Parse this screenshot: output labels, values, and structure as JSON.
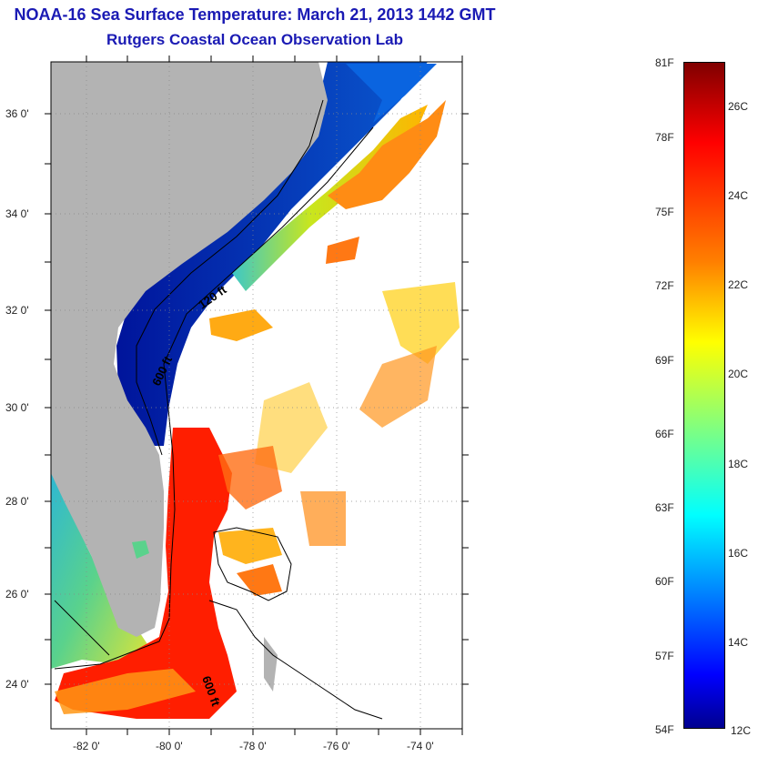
{
  "map": {
    "title": "NOAA-16 Sea Surface Temperature:  March 21, 2013 1442 GMT",
    "subtitle": "Rutgers Coastal Ocean Observation Lab",
    "lat_ticks": [
      "36 0'",
      "34 0'",
      "32 0'",
      "30 0'",
      "28 0'",
      "26 0'",
      "24 0'"
    ],
    "lon_ticks": [
      "-82 0'",
      "-80 0'",
      "-78 0'",
      "-76 0'",
      "-74 0'"
    ],
    "contour_labels": [
      "120 ft",
      "600 ft",
      "600 ft"
    ],
    "colors": {
      "land": "#b3b3b3",
      "cloud": "#ffffff",
      "title": "#1a1ab4"
    }
  },
  "colorbar": {
    "fahrenheit_labels": [
      "81F",
      "78F",
      "75F",
      "72F",
      "69F",
      "66F",
      "63F",
      "60F",
      "57F",
      "54F"
    ],
    "celsius_labels": [
      "26C",
      "24C",
      "22C",
      "20C",
      "18C",
      "16C",
      "14C",
      "12C"
    ],
    "colormap": "jet",
    "range_c": [
      12,
      27.2
    ]
  }
}
